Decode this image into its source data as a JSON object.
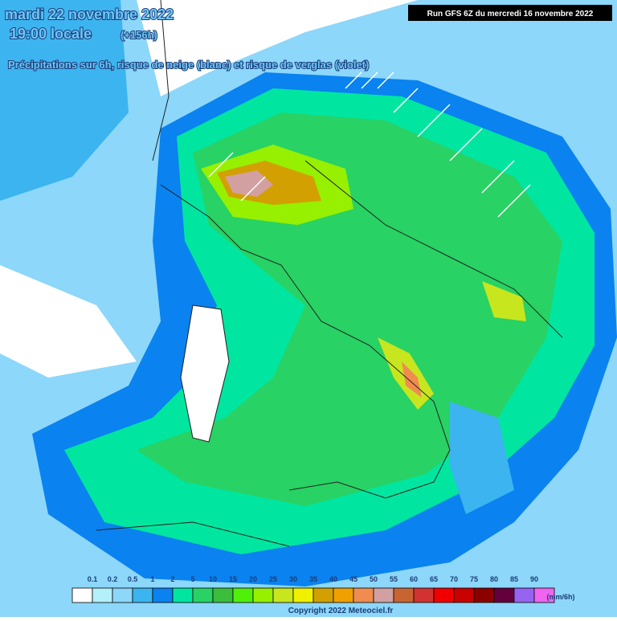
{
  "header": {
    "date": "mardi 22 novembre 2022",
    "time": "19:00 locale",
    "lead": "(+156h)",
    "subtitle": "Précipitations sur 6h, risque de neige (blanc) et risque de verglas (violet)",
    "run": "Run GFS 6Z du mercredi 16 novembre 2022"
  },
  "legend": {
    "colors": [
      "#ffffff",
      "#b4f0fa",
      "#8cd7fa",
      "#3cb4f0",
      "#0a82f0",
      "#00e6a0",
      "#28d264",
      "#3cbe3c",
      "#50f00a",
      "#96f000",
      "#c8e61e",
      "#f0f000",
      "#d2a000",
      "#f0a000",
      "#f08c50",
      "#d2a0a0",
      "#c86432",
      "#d23232",
      "#f00000",
      "#c80000",
      "#8c0000",
      "#64003c",
      "#9664f0",
      "#f064f0"
    ],
    "labels": [
      "0.1",
      "0.2",
      "0.5",
      "1",
      "2",
      "5",
      "10",
      "15",
      "20",
      "25",
      "30",
      "35",
      "40",
      "45",
      "50",
      "55",
      "60",
      "65",
      "70",
      "75",
      "80",
      "85",
      "90"
    ],
    "unit": "(mm/6h)"
  },
  "footer": {
    "copyright": "Copyright 2022 Meteociel.fr"
  }
}
